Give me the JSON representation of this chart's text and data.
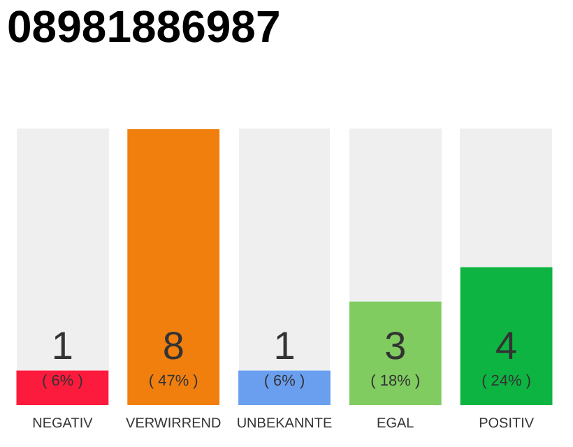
{
  "chart_data": {
    "type": "bar",
    "title": "08981886987",
    "categories": [
      "NEGATIV",
      "VERWIRREND",
      "UNBEKANNTE",
      "EGAL",
      "POSITIV"
    ],
    "values": [
      1,
      8,
      1,
      3,
      4
    ],
    "colors": [
      "#fc1b3d",
      "#f17f0e",
      "#6a9ff0",
      "#80cc60",
      "#0eb441"
    ],
    "data_labels": true,
    "annotations": [
      "( 6% )",
      "( 47% )",
      "( 6% )",
      "( 18% )",
      "( 24% )"
    ],
    "grid": false,
    "legend": false
  }
}
